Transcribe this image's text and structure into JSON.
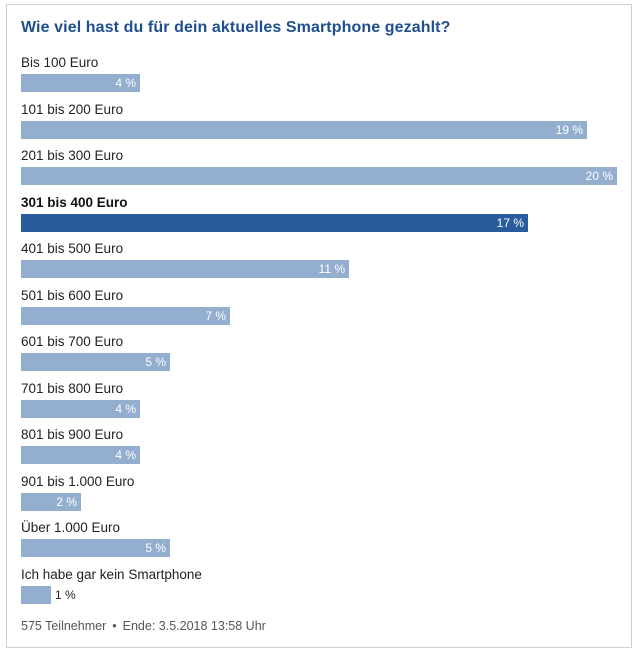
{
  "poll": {
    "title": "Wie viel hast du für dein aktuelles Smartphone gezahlt?",
    "footer": {
      "participants": "575 Teilnehmer",
      "separator": "•",
      "end": "Ende: 3.5.2018 13:58 Uhr"
    }
  },
  "colors": {
    "title": "#1f4f8f",
    "bar": "#94aed0",
    "bar_selected": "#2a5b9c"
  },
  "chart_data": {
    "type": "bar",
    "orientation": "horizontal",
    "title": "Wie viel hast du für dein aktuelles Smartphone gezahlt?",
    "xlim": [
      0,
      20
    ],
    "selected_category": "301 bis 400 Euro",
    "categories": [
      "Bis 100 Euro",
      "101 bis 200 Euro",
      "201 bis 300 Euro",
      "301 bis 400 Euro",
      "401 bis 500 Euro",
      "501 bis 600 Euro",
      "601 bis 700 Euro",
      "701 bis 800 Euro",
      "801 bis 900 Euro",
      "901 bis 1.000 Euro",
      "Über 1.000 Euro",
      "Ich habe gar kein Smartphone"
    ],
    "values": [
      4,
      19,
      20,
      17,
      11,
      7,
      5,
      4,
      4,
      2,
      5,
      1
    ],
    "value_labels": [
      "4 %",
      "19 %",
      "20 %",
      "17 %",
      "11 %",
      "7 %",
      "5 %",
      "4 %",
      "4 %",
      "2 %",
      "5 %",
      "1 %"
    ]
  }
}
